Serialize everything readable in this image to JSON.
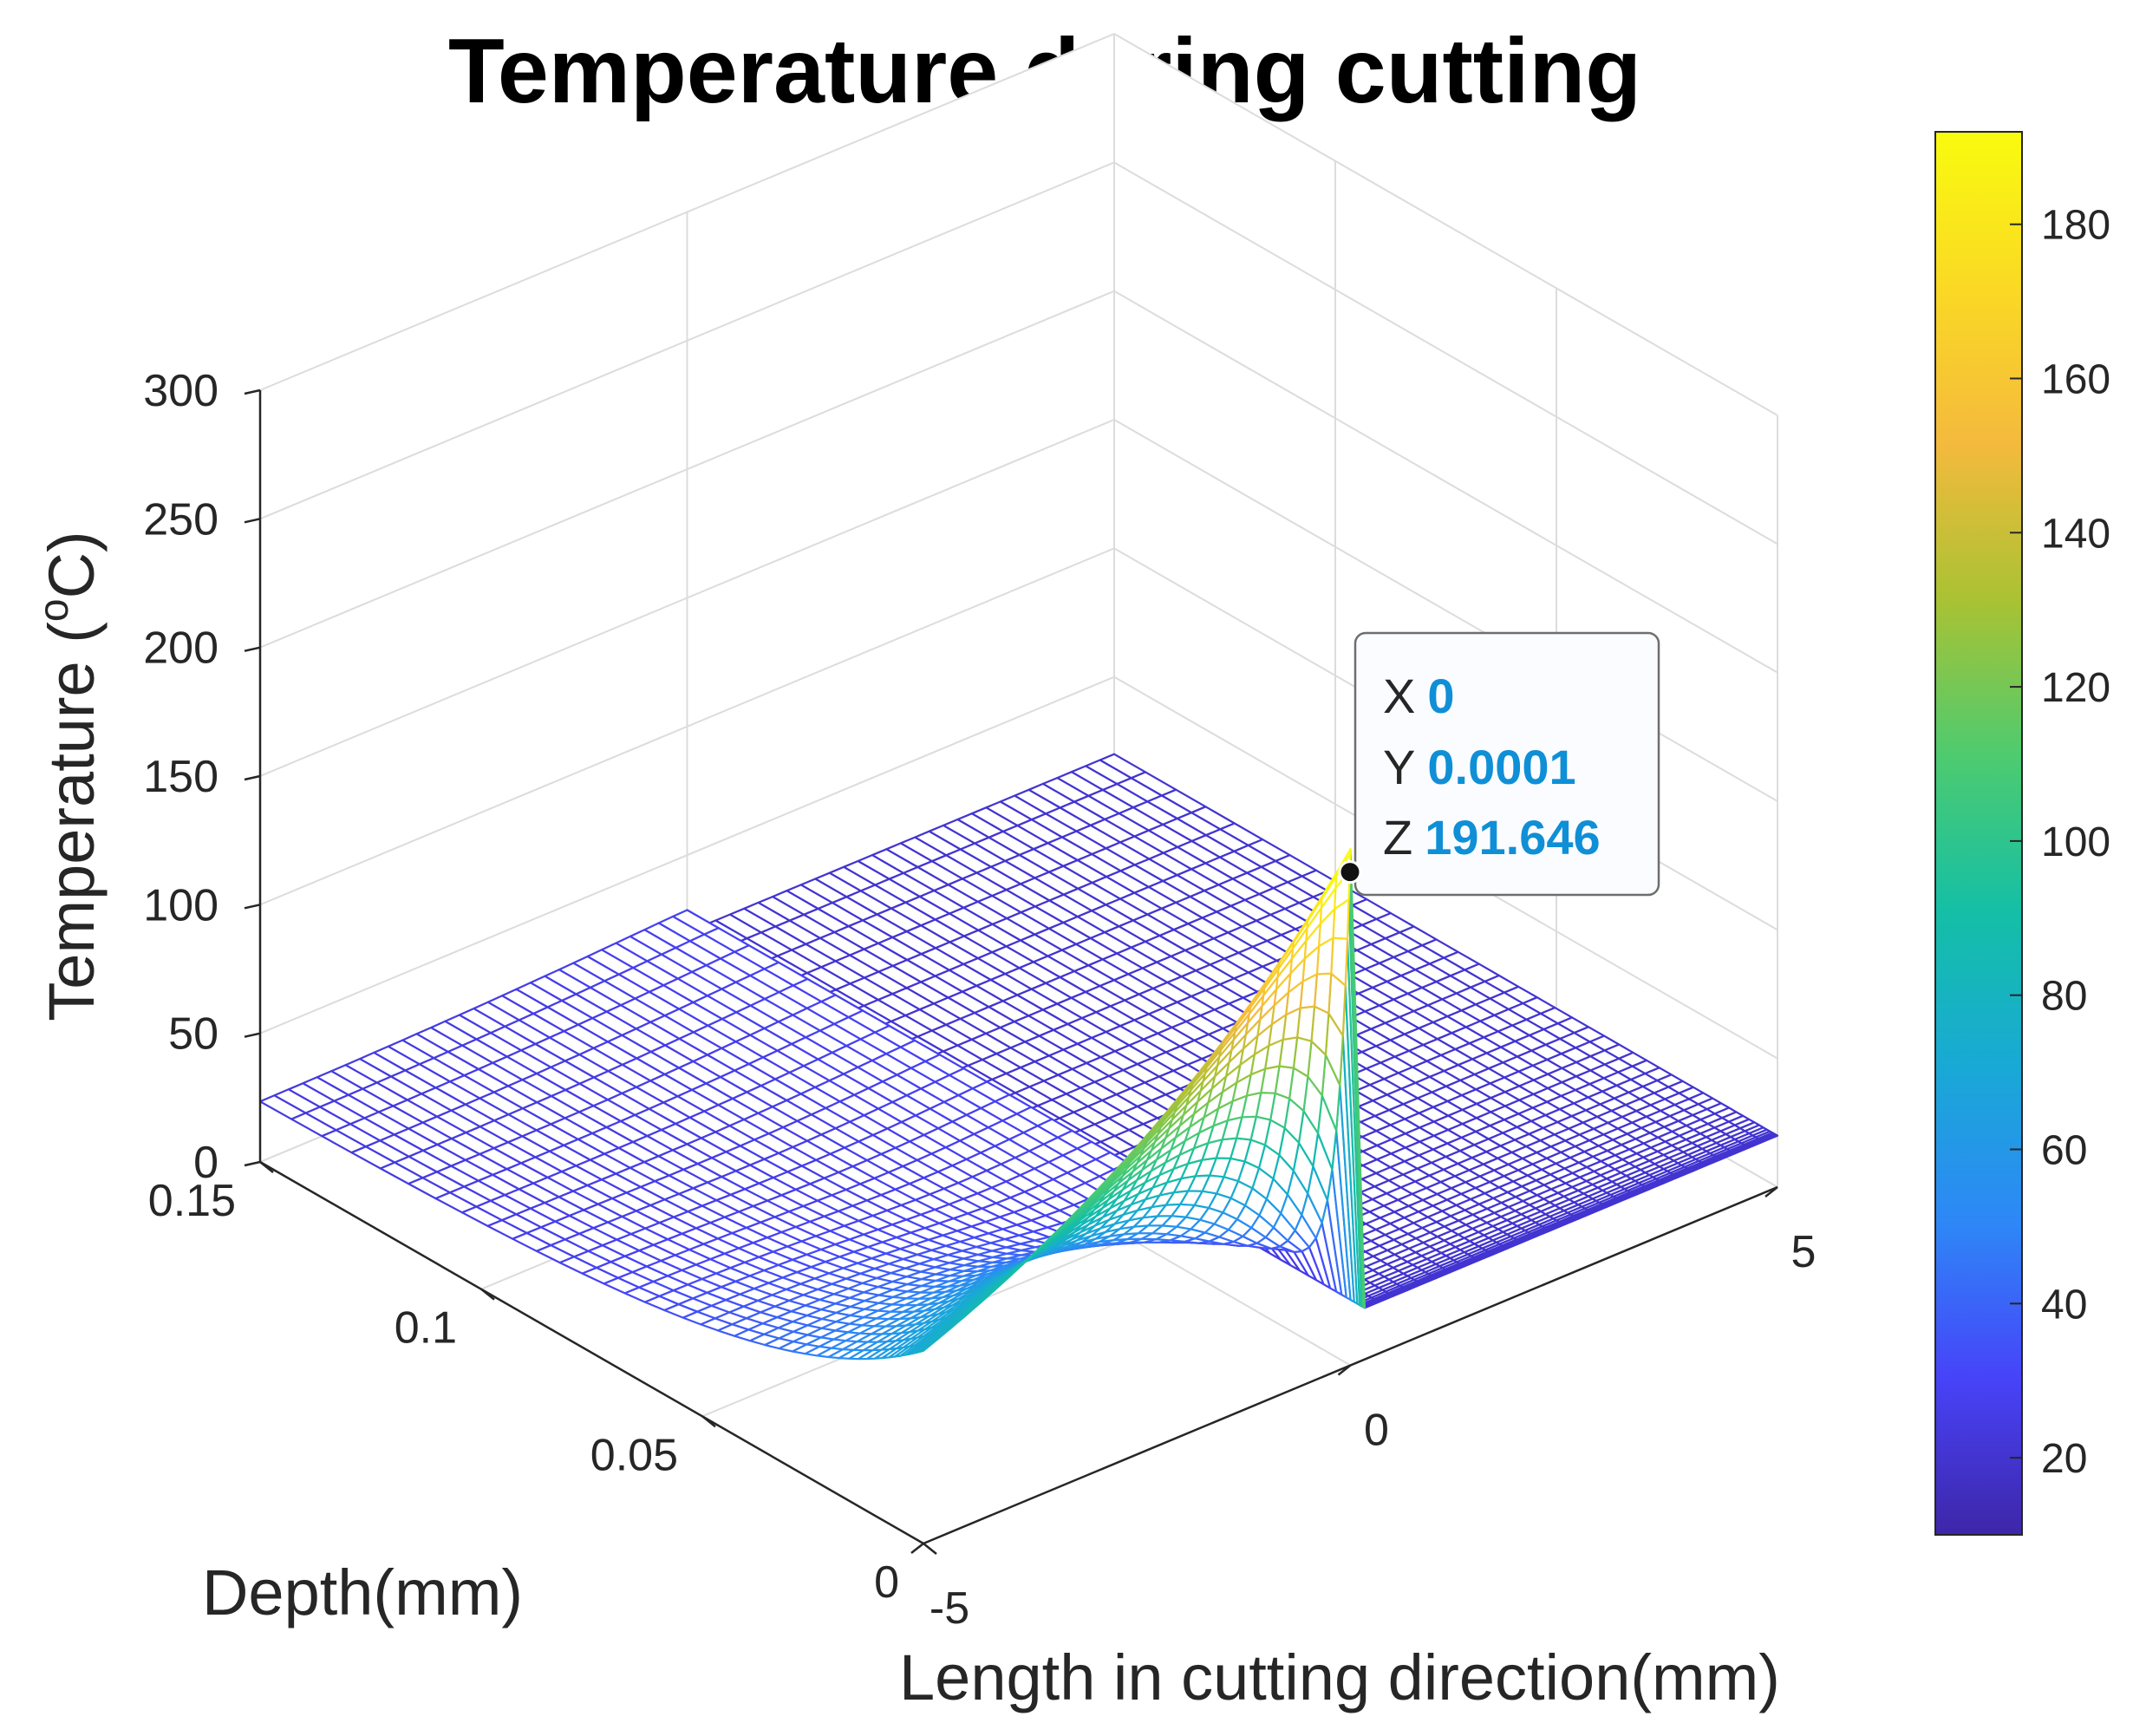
{
  "chart_data": {
    "type": "surface",
    "title": "Temperature during cutting",
    "xlabel": "Length in cutting direction(mm)",
    "ylabel": "Depth(mm)",
    "zlabel": "Temperature (oC)",
    "zlabel_parts": {
      "base": "Temperature (",
      "superscript": "o",
      "unit": "C)"
    },
    "xlim": [
      -5,
      5
    ],
    "ylim": [
      0,
      0.15
    ],
    "zlim": [
      0,
      300
    ],
    "x_ticks": [
      "-5",
      "0",
      "5"
    ],
    "y_ticks": [
      "0",
      "0.05",
      "0.1",
      "0.15"
    ],
    "z_ticks": [
      "0",
      "50",
      "100",
      "150",
      "200",
      "250",
      "300"
    ],
    "grid": true,
    "ambient_temperature": 20,
    "peak": {
      "x": 0,
      "y": 0.0001,
      "z": 191.646
    },
    "datatip": {
      "x_key": "X",
      "x_value": "0",
      "y_key": "Y",
      "y_value": "0.0001",
      "z_key": "Z",
      "z_value": "191.646"
    },
    "colorbar": {
      "colormap": "parula",
      "range": [
        10,
        192
      ],
      "ticks": [
        "20",
        "40",
        "60",
        "80",
        "100",
        "120",
        "140",
        "160",
        "180"
      ],
      "stops": [
        "#3e26a8",
        "#4743f8",
        "#2e87f7",
        "#19a9d6",
        "#14bfa6",
        "#4ecb6f",
        "#aac233",
        "#f4ba3d",
        "#fad924",
        "#f9fb0e"
      ]
    }
  }
}
